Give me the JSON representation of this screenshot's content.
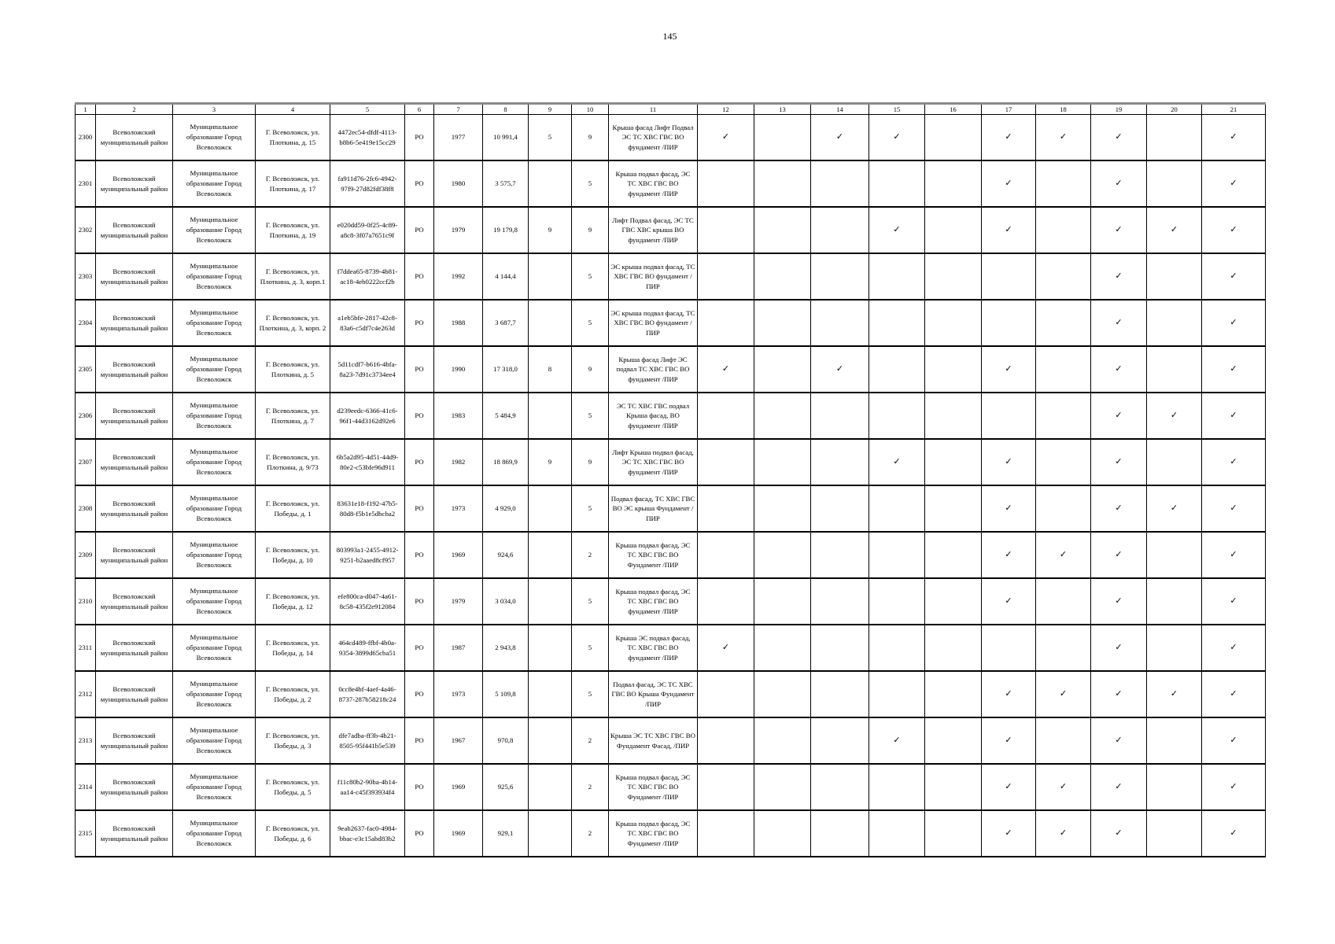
{
  "page": {
    "number": "145"
  },
  "table": {
    "checkmark": "✓",
    "column_numbers": [
      "1",
      "2",
      "3",
      "4",
      "5",
      "6",
      "7",
      "8",
      "9",
      "10",
      "11",
      "12",
      "13",
      "14",
      "15",
      "16",
      "17",
      "18",
      "19",
      "20",
      "21"
    ],
    "district": "Всеволожский муниципальный район",
    "municipality": "Муниципальное образование Город Всеволожск",
    "rows": [
      {
        "id": "2300",
        "address": "Г. Всеволожск, ул. Плоткина, д. 15",
        "uuid": "4472ec54-dfdf-4113-b8b6-5e419e15cc29",
        "program": "РО",
        "year": "1977",
        "area": "10 991,4",
        "c9": "5",
        "c10": "9",
        "works": "Крыша фасад Лифт Подвал ЭС ТС ХВС ГВС ВО фундамент /ПИР",
        "checks": [
          12,
          14,
          15,
          17,
          18,
          19,
          21
        ]
      },
      {
        "id": "2301",
        "address": "Г. Всеволожск, ул. Плоткина, д. 17",
        "uuid": "fa911d76-2fc6-4942-97f9-27d82fdf38f8",
        "program": "РО",
        "year": "1980",
        "area": "3 575,7",
        "c9": "",
        "c10": "5",
        "works": "Крыша подвал фасад, ЭС ТС ХВС ГВС ВО фундамент /ПИР",
        "checks": [
          17,
          19,
          21
        ]
      },
      {
        "id": "2302",
        "address": "Г. Всеволожск, ул. Плоткина, д. 19",
        "uuid": "e020dd59-0f25-4c89-a8c8-3f07a7651c9f",
        "program": "РО",
        "year": "1979",
        "area": "19 179,8",
        "c9": "9",
        "c10": "9",
        "works": "Лифт Подвал фасад, ЭС ТС ГВС ХВС крыша ВО фундамент /ПИР",
        "checks": [
          15,
          17,
          19,
          20,
          21
        ]
      },
      {
        "id": "2303",
        "address": "Г. Всеволожск, ул. Плоткина, д. 3, корп.1",
        "uuid": "f7ddea65-8739-4b81-ac18-4eb0222ccf2b",
        "program": "РО",
        "year": "1992",
        "area": "4 144,4",
        "c9": "",
        "c10": "5",
        "works": "ЭС крыша подвал фасад, ТС ХВС ГВС ВО фундамент /ПИР",
        "checks": [
          19,
          21
        ]
      },
      {
        "id": "2304",
        "address": "Г. Всеволожск, ул. Плоткина, д. 3, корп. 2",
        "uuid": "a1eb5bfe-2817-42c8-83a6-c5df7c4e263d",
        "program": "РО",
        "year": "1988",
        "area": "3 687,7",
        "c9": "",
        "c10": "5",
        "works": "ЭС крыша подвал фасад, ТС ХВС ГВС ВО фундамент /ПИР",
        "checks": [
          19,
          21
        ]
      },
      {
        "id": "2305",
        "address": "Г. Всеволожск, ул. Плоткина, д. 5",
        "uuid": "5d11cdf7-b616-4bfa-8a23-7d91c3734ee4",
        "program": "РО",
        "year": "1990",
        "area": "17 318,0",
        "c9": "8",
        "c10": "9",
        "works": "Крыша фасад Лифт ЭС подвал ТС ХВС ГВС ВО фундамент /ПИР",
        "checks": [
          12,
          14,
          17,
          19,
          21
        ]
      },
      {
        "id": "2306",
        "address": "Г. Всеволожск, ул. Плоткина, д. 7",
        "uuid": "d239eedc-6366-41c6-96f1-44d3162d92e6",
        "program": "РО",
        "year": "1983",
        "area": "5 484,9",
        "c9": "",
        "c10": "5",
        "works": "ЭС ТС ХВС ГВС подвал Крыша фасад, ВО фундамент /ПИР",
        "checks": [
          19,
          20,
          21
        ]
      },
      {
        "id": "2307",
        "address": "Г. Всеволожск, ул. Плоткина, д. 9/73",
        "uuid": "6b5a2d95-4d51-44d9-80e2-c53bfe96d911",
        "program": "РО",
        "year": "1982",
        "area": "18 869,9",
        "c9": "9",
        "c10": "9",
        "works": "Лифт Крыша подвал фасад, ЭС ТС ХВС ГВС ВО фундамент /ПИР",
        "checks": [
          15,
          17,
          19,
          21
        ]
      },
      {
        "id": "2308",
        "address": "Г. Всеволожск, ул. Победы, д. 1",
        "uuid": "83631e18-f192-47b5-80d8-f5b1e5dbcba2",
        "program": "РО",
        "year": "1973",
        "area": "4 929,0",
        "c9": "",
        "c10": "5",
        "works": "Подвал фасад, ТС ХВС ГВС ВО ЭС крыша Фундамент /ПИР",
        "checks": [
          17,
          19,
          20,
          21
        ]
      },
      {
        "id": "2309",
        "address": "Г. Всеволожск, ул. Победы, д. 10",
        "uuid": "803993a1-2455-4912-9251-b2aaed8cf957",
        "program": "РО",
        "year": "1969",
        "area": "924,6",
        "c9": "",
        "c10": "2",
        "works": "Крыша подвал фасад, ЭС ТС ХВС ГВС ВО Фундамент /ПИР",
        "checks": [
          17,
          18,
          19,
          21
        ]
      },
      {
        "id": "2310",
        "address": "Г. Всеволожск, ул. Победы, д. 12",
        "uuid": "efe800ca-d047-4a61-8c58-435f2e912084",
        "program": "РО",
        "year": "1979",
        "area": "3 034,0",
        "c9": "",
        "c10": "5",
        "works": "Крыша подвал фасад, ЭС ТС ХВС ГВС ВО фундамент /ПИР",
        "checks": [
          17,
          19,
          21
        ]
      },
      {
        "id": "2311",
        "address": "Г. Всеволожск, ул. Победы, д. 14",
        "uuid": "464cd489-ffbf-4b0a-9354-3899d65cba51",
        "program": "РО",
        "year": "1987",
        "area": "2 943,8",
        "c9": "",
        "c10": "5",
        "works": "Крыша ЭС подвал фасад, ТС ХВС ГВС ВО фундамент /ПИР",
        "checks": [
          12,
          19,
          21
        ]
      },
      {
        "id": "2312",
        "address": "Г. Всеволожск, ул. Победы, д. 2",
        "uuid": "0cc8e4bf-4aef-4a46-8737-287b58218c24",
        "program": "РО",
        "year": "1973",
        "area": "5 109,8",
        "c9": "",
        "c10": "5",
        "works": "Подвал фасад, ЭС ТС ХВС ГВС ВО Крыша Фундамент /ПИР",
        "checks": [
          17,
          18,
          19,
          20,
          21
        ]
      },
      {
        "id": "2313",
        "address": "Г. Всеволожск, ул. Победы, д. 3",
        "uuid": "dfe7adba-ff3b-4b21-8505-95f441b5e539",
        "program": "РО",
        "year": "1967",
        "area": "970,8",
        "c9": "",
        "c10": "2",
        "works": "Крыша ЭС ТС ХВС ГВС ВО Фундамент Фасад, /ПИР",
        "checks": [
          15,
          17,
          19,
          21
        ]
      },
      {
        "id": "2314",
        "address": "Г. Всеволожск, ул. Победы, д. 5",
        "uuid": "f11c80b2-90ba-4b14-aa14-c45f393934f4",
        "program": "РО",
        "year": "1969",
        "area": "925,6",
        "c9": "",
        "c10": "2",
        "works": "Крыша подвал фасад, ЭС ТС ХВС ГВС ВО Фундамент /ПИР",
        "checks": [
          17,
          18,
          19,
          21
        ]
      },
      {
        "id": "2315",
        "address": "Г. Всеволожск, ул. Победы, д. 6",
        "uuid": "9eab2637-fac0-4984-bbac-e3c15abd83b2",
        "program": "РО",
        "year": "1969",
        "area": "929,1",
        "c9": "",
        "c10": "2",
        "works": "Крыша подвал фасад, ЭС ТС ХВС ГВС ВО Фундамент /ПИР",
        "checks": [
          17,
          18,
          19,
          21
        ]
      }
    ]
  }
}
